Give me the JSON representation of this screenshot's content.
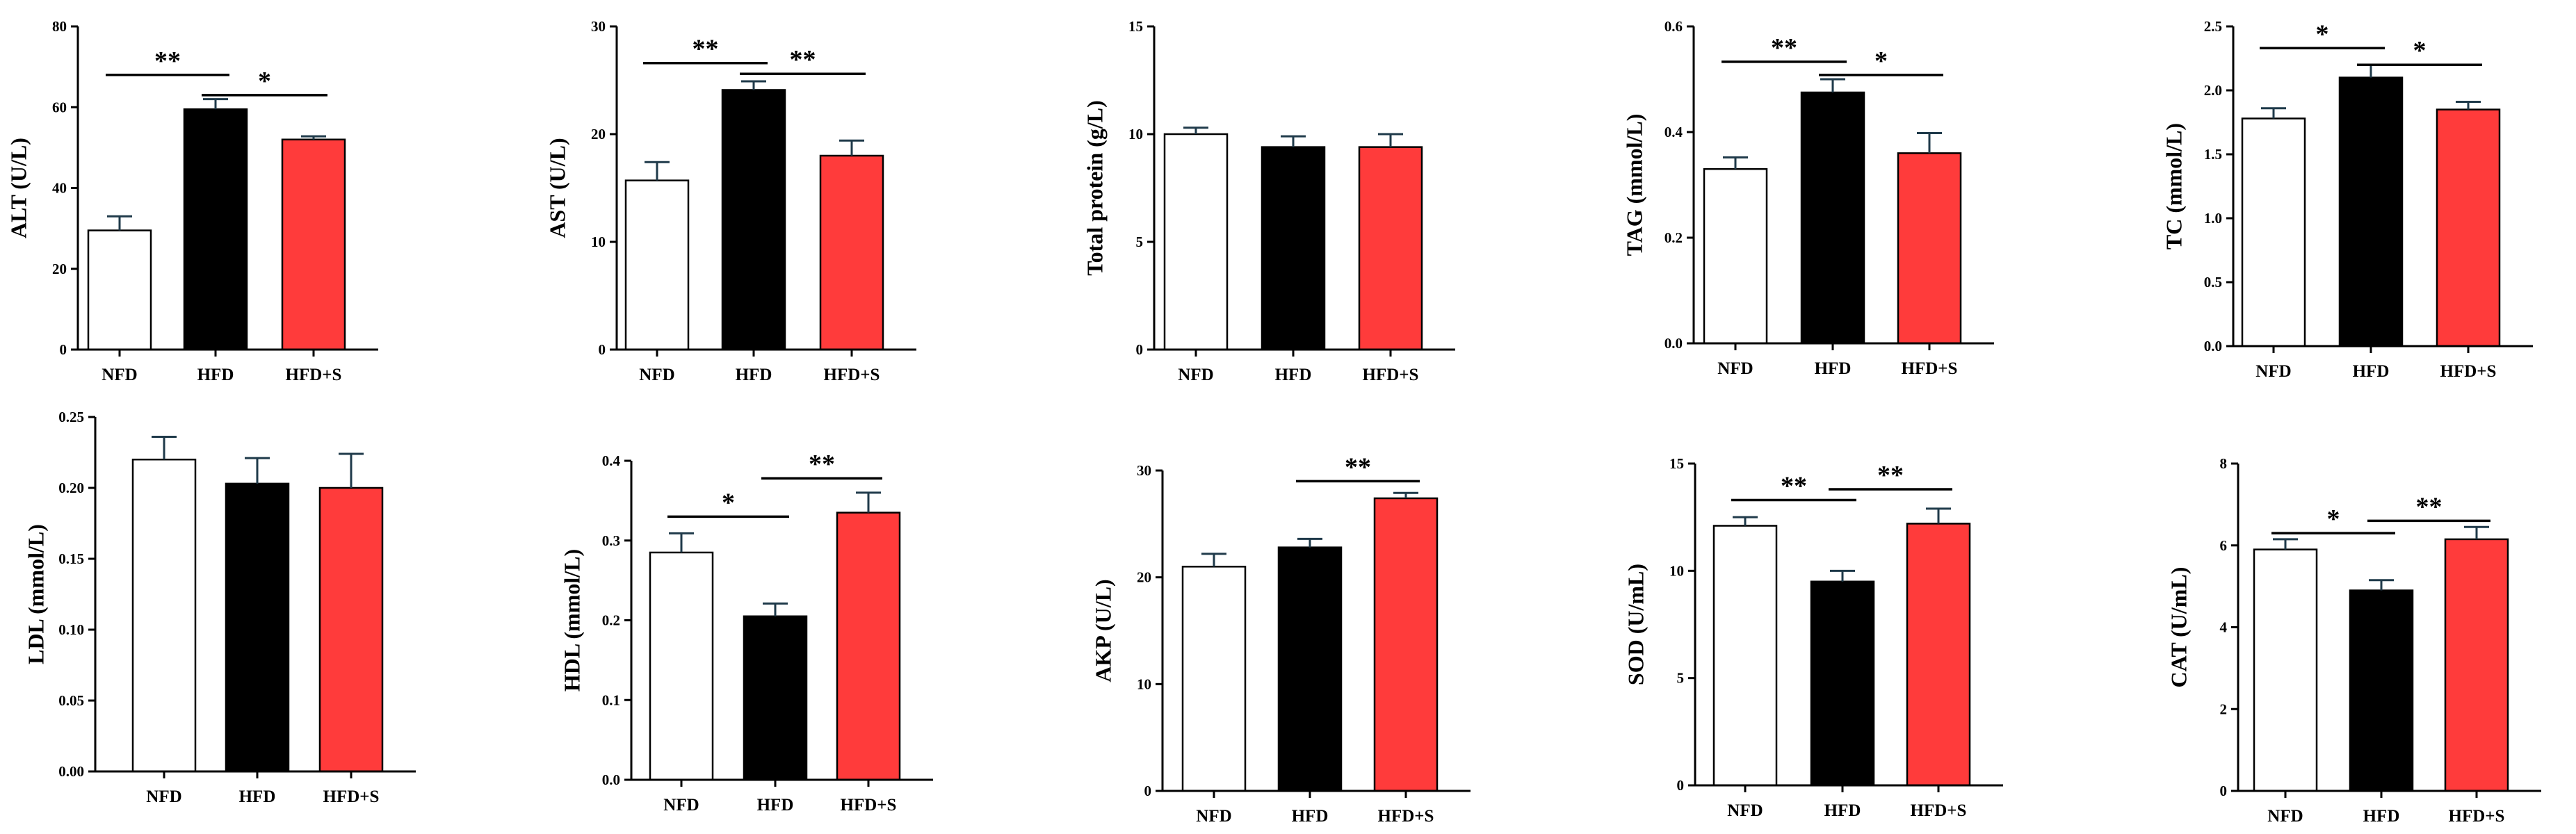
{
  "colors": {
    "NFD": "#ffffff",
    "HFD": "#000000",
    "HFD+S": "#ff3b3b",
    "error_bar": "#1f3a4a"
  },
  "chart_data": [
    {
      "type": "bar",
      "id": "alt",
      "ylabel": "ALT (U/L)",
      "categories": [
        "NFD",
        "HFD",
        "HFD+S"
      ],
      "values": [
        29.5,
        59.5,
        52.0
      ],
      "errors": [
        3.5,
        2.5,
        0.8
      ],
      "ylim": [
        0,
        80
      ],
      "yticks": [
        "0",
        "20",
        "40",
        "60",
        "80"
      ],
      "significance": [
        {
          "from": 0,
          "to": 1,
          "label": "**",
          "level": 68
        },
        {
          "from": 1,
          "to": 2,
          "label": "*",
          "level": 63
        }
      ]
    },
    {
      "type": "bar",
      "id": "ast",
      "ylabel": "AST (U/L)",
      "categories": [
        "NFD",
        "HFD",
        "HFD+S"
      ],
      "values": [
        15.7,
        24.1,
        18.0
      ],
      "errors": [
        1.7,
        0.8,
        1.4
      ],
      "ylim": [
        0,
        30
      ],
      "yticks": [
        "0",
        "10",
        "20",
        "30"
      ],
      "significance": [
        {
          "from": 0,
          "to": 1,
          "label": "**",
          "level": 26.6
        },
        {
          "from": 1,
          "to": 2,
          "label": "**",
          "level": 25.6
        }
      ]
    },
    {
      "type": "bar",
      "id": "total-protein",
      "ylabel": "Total protein (g/L)",
      "categories": [
        "NFD",
        "HFD",
        "HFD+S"
      ],
      "values": [
        10.0,
        9.4,
        9.4
      ],
      "errors": [
        0.3,
        0.5,
        0.6
      ],
      "ylim": [
        0,
        15
      ],
      "yticks": [
        "0",
        "5",
        "10",
        "15"
      ],
      "significance": []
    },
    {
      "type": "bar",
      "id": "tag",
      "ylabel": "TAG (mmol/L)",
      "categories": [
        "NFD",
        "HFD",
        "HFD+S"
      ],
      "values": [
        0.33,
        0.475,
        0.36
      ],
      "errors": [
        0.022,
        0.025,
        0.038
      ],
      "ylim": [
        0,
        0.6
      ],
      "yticks": [
        "0.0",
        "0.2",
        "0.4",
        "0.6"
      ],
      "significance": [
        {
          "from": 0,
          "to": 1,
          "label": "**",
          "level": 0.533
        },
        {
          "from": 1,
          "to": 2,
          "label": "*",
          "level": 0.508
        }
      ]
    },
    {
      "type": "bar",
      "id": "tc",
      "ylabel": "TC (mmol/L)",
      "categories": [
        "NFD",
        "HFD",
        "HFD+S"
      ],
      "values": [
        1.78,
        2.1,
        1.85
      ],
      "errors": [
        0.08,
        0.1,
        0.06
      ],
      "ylim": [
        0,
        2.5
      ],
      "yticks": [
        "0.0",
        "0.5",
        "1.0",
        "1.5",
        "2.0",
        "2.5"
      ],
      "significance": [
        {
          "from": 0,
          "to": 1,
          "label": "*",
          "level": 2.33
        },
        {
          "from": 1,
          "to": 2,
          "label": "*",
          "level": 2.2
        }
      ]
    },
    {
      "type": "bar",
      "id": "ldl",
      "ylabel": "LDL (mmol/L)",
      "categories": [
        "NFD",
        "HFD",
        "HFD+S"
      ],
      "values": [
        0.22,
        0.203,
        0.2
      ],
      "errors": [
        0.016,
        0.018,
        0.024
      ],
      "ylim": [
        0,
        0.25
      ],
      "yticks": [
        "0.00",
        "0.05",
        "0.10",
        "0.15",
        "0.20",
        "0.25"
      ],
      "significance": []
    },
    {
      "type": "bar",
      "id": "hdl",
      "ylabel": "HDL (mmol/L)",
      "categories": [
        "NFD",
        "HFD",
        "HFD+S"
      ],
      "values": [
        0.285,
        0.205,
        0.335
      ],
      "errors": [
        0.024,
        0.016,
        0.025
      ],
      "ylim": [
        0,
        0.4
      ],
      "yticks": [
        "0.0",
        "0.1",
        "0.2",
        "0.3",
        "0.4"
      ],
      "significance": [
        {
          "from": 0,
          "to": 1,
          "label": "*",
          "level": 0.33
        },
        {
          "from": 1,
          "to": 2,
          "label": "**",
          "level": 0.378
        }
      ]
    },
    {
      "type": "bar",
      "id": "akp",
      "ylabel": "AKP (U/L)",
      "categories": [
        "NFD",
        "HFD",
        "HFD+S"
      ],
      "values": [
        21.0,
        22.8,
        27.4
      ],
      "errors": [
        1.2,
        0.8,
        0.5
      ],
      "ylim": [
        0,
        30
      ],
      "yticks": [
        "0",
        "10",
        "20",
        "30"
      ],
      "significance": [
        {
          "from": 1,
          "to": 2,
          "label": "**",
          "level": 29.0
        }
      ]
    },
    {
      "type": "bar",
      "id": "sod",
      "ylabel": "SOD (U/mL)",
      "categories": [
        "NFD",
        "HFD",
        "HFD+S"
      ],
      "values": [
        12.1,
        9.5,
        12.2
      ],
      "errors": [
        0.4,
        0.5,
        0.7
      ],
      "ylim": [
        0,
        15
      ],
      "yticks": [
        "0",
        "5",
        "10",
        "15"
      ],
      "significance": [
        {
          "from": 0,
          "to": 1,
          "label": "**",
          "level": 13.3
        },
        {
          "from": 1,
          "to": 2,
          "label": "**",
          "level": 13.8
        }
      ]
    },
    {
      "type": "bar",
      "id": "cat",
      "ylabel": "CAT (U/mL)",
      "categories": [
        "NFD",
        "HFD",
        "HFD+S"
      ],
      "values": [
        5.9,
        4.9,
        6.15
      ],
      "errors": [
        0.25,
        0.25,
        0.3
      ],
      "ylim": [
        0,
        8
      ],
      "yticks": [
        "0",
        "2",
        "4",
        "6",
        "8"
      ],
      "significance": [
        {
          "from": 0,
          "to": 1,
          "label": "*",
          "level": 6.3
        },
        {
          "from": 1,
          "to": 2,
          "label": "**",
          "level": 6.6
        }
      ]
    }
  ]
}
